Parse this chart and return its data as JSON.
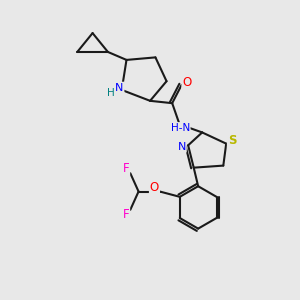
{
  "background_color": "#e8e8e8",
  "bond_color": "#1a1a1a",
  "atom_colors": {
    "N": "#0000ff",
    "NH": "#0000ff",
    "O": "#ff0000",
    "S": "#cccc00",
    "F": "#ff00cc",
    "C": "#1a1a1a",
    "H": "#008080"
  }
}
